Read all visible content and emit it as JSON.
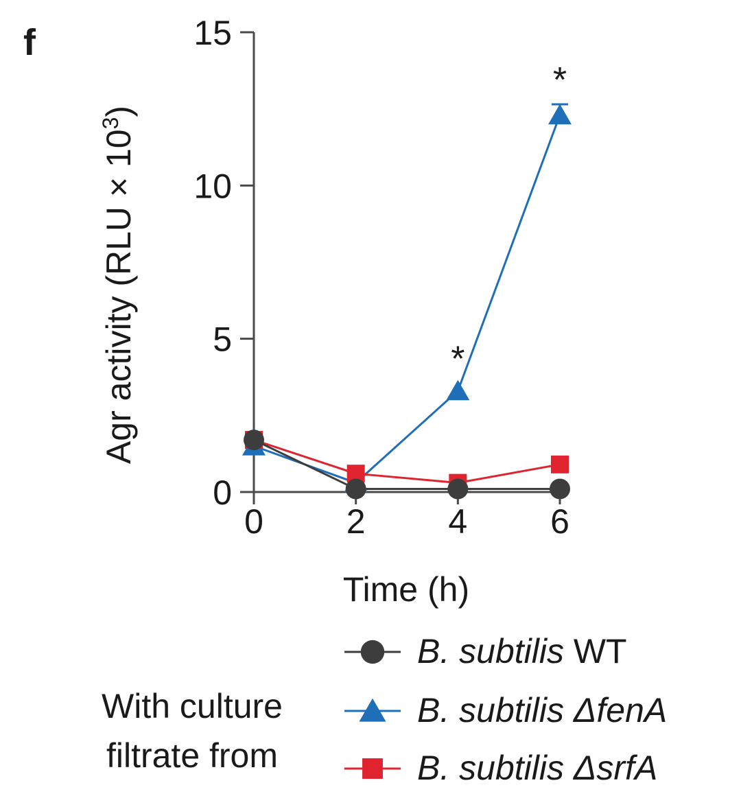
{
  "chart_data": {
    "type": "line",
    "panel_label": "f",
    "xlabel": "Time (h)",
    "ylabel": "Agr activity (RLU × 10",
    "ylabel_sup": "3",
    "ylabel_close": ")",
    "x": [
      0,
      2,
      4,
      6
    ],
    "xlim": [
      0,
      6
    ],
    "ylim": [
      0,
      15
    ],
    "x_ticks": [
      "0",
      "2",
      "4",
      "6"
    ],
    "y_ticks": [
      "0",
      "5",
      "10",
      "15"
    ],
    "series": [
      {
        "name": "B. subtilis WT",
        "marker": "circle",
        "color": "#3d3d3d",
        "values": [
          1.7,
          0.1,
          0.1,
          0.1
        ]
      },
      {
        "name": "B. subtilis ΔfenA",
        "marker": "triangle",
        "color": "#1f6eb8",
        "values": [
          1.5,
          0.3,
          3.3,
          12.3
        ],
        "error": [
          0,
          0,
          0,
          0.35
        ]
      },
      {
        "name": "B. subtilis ΔsrfA",
        "marker": "square",
        "color": "#e0242f",
        "values": [
          1.7,
          0.6,
          0.3,
          0.9
        ]
      }
    ],
    "annotations": [
      {
        "text": "*",
        "x": 4,
        "y": 4.4
      },
      {
        "text": "*",
        "x": 6,
        "y": 13.5
      }
    ],
    "legend_title": [
      "With culture",
      "filtrate from"
    ],
    "legend_entries": [
      {
        "prefix": "B. subtilis",
        "suffix": " WT",
        "suffix_italic": false
      },
      {
        "prefix": "B. subtilis",
        "suffix": " ΔfenA",
        "suffix_italic": true
      },
      {
        "prefix": "B. subtilis",
        "suffix": " ΔsrfA",
        "suffix_italic": true
      }
    ],
    "legend_position": "bottom"
  }
}
